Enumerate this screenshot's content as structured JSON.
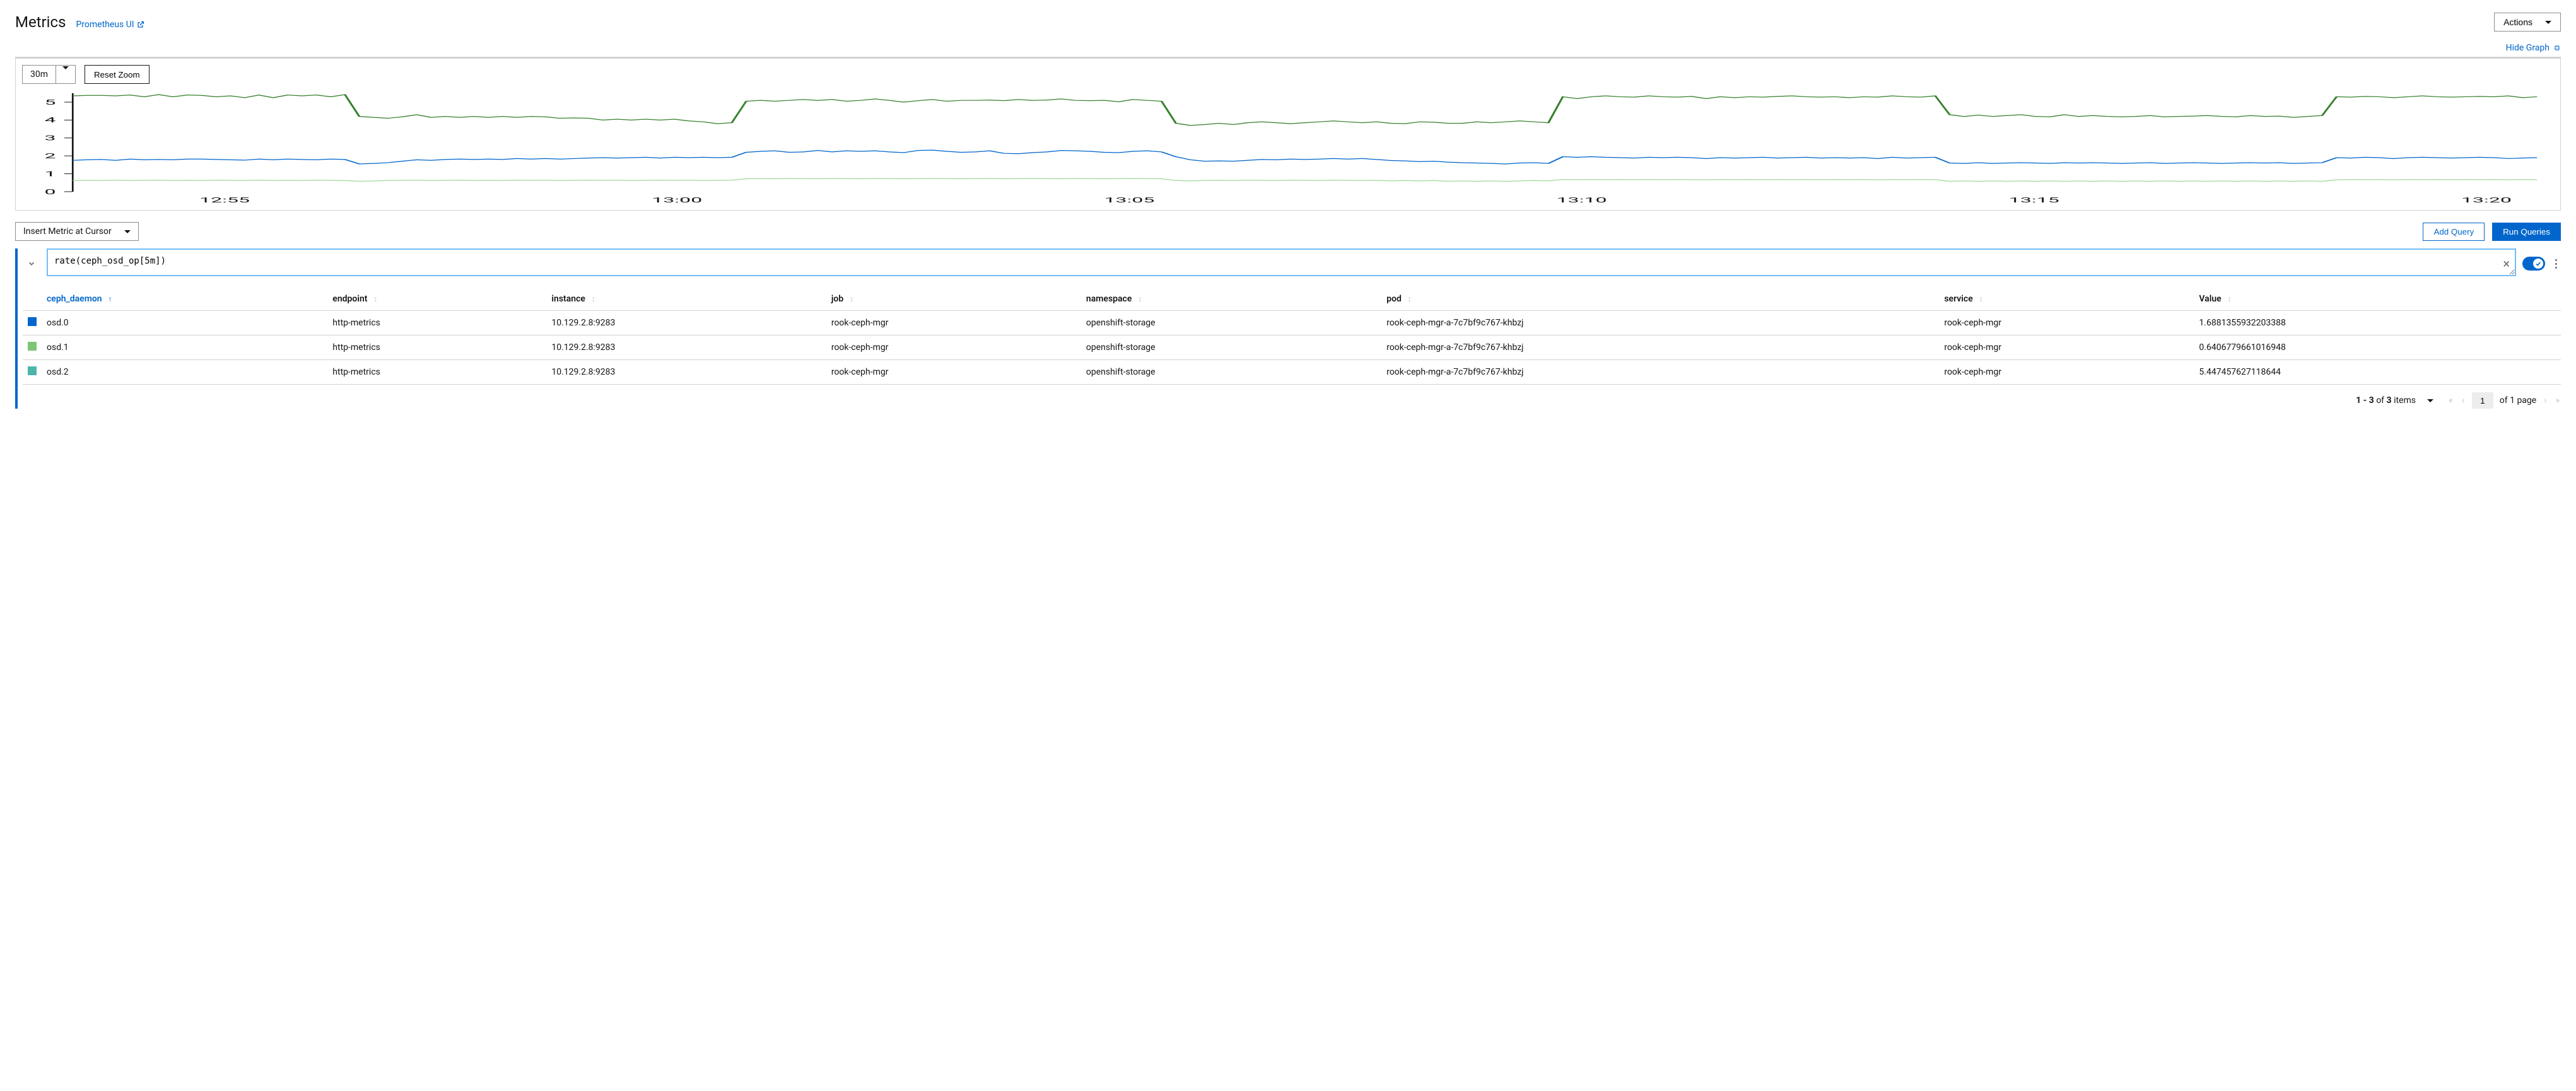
{
  "header": {
    "title": "Metrics",
    "prometheus_link": "Prometheus UI",
    "actions_label": "Actions"
  },
  "graph": {
    "hide_label": "Hide Graph",
    "time_range": "30m",
    "reset_zoom": "Reset Zoom",
    "chart": {
      "type": "line",
      "background_color": "#ffffff",
      "y_axis": {
        "min": 0,
        "max": 5.5,
        "ticks": [
          0,
          1,
          2,
          3,
          4,
          5
        ]
      },
      "x_axis": {
        "ticks": [
          "12:55",
          "13:00",
          "13:05",
          "13:10",
          "13:15",
          "13:20"
        ]
      },
      "series": [
        {
          "name": "osd.2",
          "color": "#38812f",
          "stroke_width": 1.3,
          "points": [
            5.35,
            5.38,
            5.38,
            5.35,
            5.4,
            5.3,
            5.42,
            5.3,
            5.4,
            5.38,
            5.3,
            5.35,
            5.25,
            5.4,
            5.25,
            5.4,
            5.35,
            5.4,
            5.3,
            5.42,
            4.2,
            4.15,
            4.1,
            4.18,
            4.3,
            4.15,
            4.2,
            4.15,
            4.2,
            4.15,
            4.2,
            4.15,
            4.2,
            4.18,
            4.1,
            4.12,
            4.1,
            4.0,
            4.05,
            4.0,
            4.05,
            4.0,
            4.05,
            3.95,
            3.9,
            3.8,
            3.85,
            5.05,
            5.1,
            5.05,
            5.1,
            5.15,
            5.1,
            5.15,
            5.05,
            5.1,
            5.18,
            5.1,
            5.0,
            5.08,
            5.15,
            5.05,
            5.1,
            5.1,
            5.12,
            5.08,
            5.15,
            5.1,
            5.12,
            5.18,
            5.1,
            5.08,
            5.1,
            5.02,
            5.15,
            5.1,
            5.05,
            3.82,
            3.7,
            3.75,
            3.82,
            3.75,
            3.85,
            3.9,
            3.85,
            3.8,
            3.85,
            3.9,
            3.95,
            3.9,
            3.85,
            3.9,
            3.82,
            3.8,
            3.9,
            3.88,
            3.82,
            3.82,
            3.9,
            3.85,
            3.9,
            3.95,
            3.9,
            3.85,
            5.3,
            5.2,
            5.3,
            5.35,
            5.3,
            5.28,
            5.35,
            5.3,
            5.28,
            5.32,
            5.2,
            5.3,
            5.25,
            5.3,
            5.28,
            5.32,
            5.35,
            5.3,
            5.28,
            5.3,
            5.25,
            5.3,
            5.28,
            5.35,
            5.3,
            5.28,
            5.35,
            4.3,
            4.2,
            4.28,
            4.2,
            4.25,
            4.3,
            4.2,
            4.18,
            4.3,
            4.2,
            4.25,
            4.2,
            4.18,
            4.2,
            4.25,
            4.18,
            4.2,
            4.22,
            4.25,
            4.2,
            4.18,
            4.25,
            4.2,
            4.22,
            4.15,
            4.2,
            4.25,
            5.3,
            5.28,
            5.32,
            5.3,
            5.25,
            5.3,
            5.35,
            5.3,
            5.28,
            5.3,
            5.32,
            5.3,
            5.35,
            5.25,
            5.3
          ]
        },
        {
          "name": "osd.0",
          "color": "#0066cc",
          "stroke_width": 1.3,
          "points": [
            1.75,
            1.78,
            1.8,
            1.75,
            1.82,
            1.78,
            1.8,
            1.78,
            1.82,
            1.82,
            1.8,
            1.78,
            1.76,
            1.82,
            1.78,
            1.82,
            1.8,
            1.78,
            1.82,
            1.8,
            1.55,
            1.58,
            1.62,
            1.7,
            1.78,
            1.75,
            1.8,
            1.82,
            1.8,
            1.82,
            1.8,
            1.85,
            1.82,
            1.85,
            1.82,
            1.85,
            1.88,
            1.9,
            1.88,
            1.9,
            1.92,
            1.88,
            1.92,
            1.9,
            1.92,
            1.9,
            1.92,
            2.2,
            2.25,
            2.28,
            2.2,
            2.22,
            2.3,
            2.22,
            2.28,
            2.25,
            2.28,
            2.22,
            2.18,
            2.3,
            2.32,
            2.25,
            2.2,
            2.22,
            2.28,
            2.14,
            2.12,
            2.18,
            2.22,
            2.3,
            2.28,
            2.25,
            2.2,
            2.18,
            2.25,
            2.28,
            2.22,
            1.95,
            1.78,
            1.7,
            1.72,
            1.7,
            1.75,
            1.8,
            1.78,
            1.82,
            1.8,
            1.82,
            1.85,
            1.82,
            1.85,
            1.8,
            1.74,
            1.72,
            1.68,
            1.7,
            1.65,
            1.62,
            1.6,
            1.58,
            1.55,
            1.6,
            1.62,
            1.58,
            1.95,
            1.92,
            1.95,
            1.92,
            1.9,
            1.88,
            1.92,
            1.9,
            1.92,
            1.9,
            1.85,
            1.9,
            1.88,
            1.9,
            1.92,
            1.88,
            1.9,
            1.92,
            1.88,
            1.9,
            1.88,
            1.9,
            1.85,
            1.92,
            1.88,
            1.9,
            1.92,
            1.6,
            1.58,
            1.62,
            1.58,
            1.6,
            1.62,
            1.6,
            1.58,
            1.62,
            1.6,
            1.62,
            1.6,
            1.58,
            1.6,
            1.62,
            1.58,
            1.6,
            1.62,
            1.6,
            1.58,
            1.6,
            1.62,
            1.6,
            1.62,
            1.58,
            1.6,
            1.62,
            1.9,
            1.88,
            1.92,
            1.9,
            1.85,
            1.9,
            1.92,
            1.9,
            1.88,
            1.9,
            1.92,
            1.9,
            1.85,
            1.88,
            1.9
          ]
        },
        {
          "name": "osd.1",
          "color": "#a2d99c",
          "stroke_width": 1.3,
          "points": [
            0.62,
            0.63,
            0.62,
            0.64,
            0.62,
            0.63,
            0.64,
            0.62,
            0.63,
            0.62,
            0.64,
            0.63,
            0.62,
            0.64,
            0.62,
            0.63,
            0.62,
            0.64,
            0.63,
            0.62,
            0.58,
            0.6,
            0.62,
            0.63,
            0.64,
            0.62,
            0.63,
            0.64,
            0.62,
            0.63,
            0.62,
            0.64,
            0.63,
            0.64,
            0.62,
            0.63,
            0.64,
            0.63,
            0.64,
            0.62,
            0.63,
            0.64,
            0.63,
            0.64,
            0.62,
            0.63,
            0.64,
            0.72,
            0.73,
            0.72,
            0.74,
            0.73,
            0.72,
            0.74,
            0.73,
            0.72,
            0.74,
            0.73,
            0.72,
            0.73,
            0.74,
            0.73,
            0.72,
            0.73,
            0.74,
            0.72,
            0.73,
            0.74,
            0.73,
            0.72,
            0.74,
            0.73,
            0.72,
            0.73,
            0.74,
            0.73,
            0.72,
            0.62,
            0.6,
            0.62,
            0.63,
            0.62,
            0.64,
            0.63,
            0.62,
            0.64,
            0.63,
            0.62,
            0.64,
            0.63,
            0.62,
            0.63,
            0.6,
            0.62,
            0.6,
            0.62,
            0.58,
            0.6,
            0.58,
            0.6,
            0.58,
            0.6,
            0.62,
            0.6,
            0.68,
            0.67,
            0.68,
            0.67,
            0.68,
            0.67,
            0.68,
            0.67,
            0.68,
            0.67,
            0.66,
            0.68,
            0.67,
            0.68,
            0.67,
            0.68,
            0.67,
            0.68,
            0.67,
            0.68,
            0.67,
            0.68,
            0.66,
            0.68,
            0.67,
            0.68,
            0.67,
            0.58,
            0.6,
            0.58,
            0.6,
            0.58,
            0.6,
            0.58,
            0.6,
            0.58,
            0.6,
            0.58,
            0.6,
            0.58,
            0.6,
            0.58,
            0.6,
            0.58,
            0.6,
            0.58,
            0.6,
            0.58,
            0.6,
            0.58,
            0.6,
            0.58,
            0.6,
            0.58,
            0.66,
            0.68,
            0.67,
            0.68,
            0.66,
            0.68,
            0.67,
            0.68,
            0.67,
            0.68,
            0.67,
            0.68,
            0.66,
            0.68,
            0.67
          ]
        }
      ]
    }
  },
  "query_controls": {
    "insert_metric": "Insert Metric at Cursor",
    "add_query": "Add Query",
    "run_queries": "Run Queries"
  },
  "query": "rate(ceph_osd_op[5m])",
  "table": {
    "columns": [
      {
        "key": "ceph_daemon",
        "label": "ceph_daemon",
        "sorted": true
      },
      {
        "key": "endpoint",
        "label": "endpoint"
      },
      {
        "key": "instance",
        "label": "instance"
      },
      {
        "key": "job",
        "label": "job"
      },
      {
        "key": "namespace",
        "label": "namespace"
      },
      {
        "key": "pod",
        "label": "pod"
      },
      {
        "key": "service",
        "label": "service"
      },
      {
        "key": "value",
        "label": "Value"
      }
    ],
    "row_colors": [
      "#0066cc",
      "#7cc674",
      "#4cb6ac"
    ],
    "rows": [
      [
        "osd.0",
        "http-metrics",
        "10.129.2.8:9283",
        "rook-ceph-mgr",
        "openshift-storage",
        "rook-ceph-mgr-a-7c7bf9c767-khbzj",
        "rook-ceph-mgr",
        "1.6881355932203388"
      ],
      [
        "osd.1",
        "http-metrics",
        "10.129.2.8:9283",
        "rook-ceph-mgr",
        "openshift-storage",
        "rook-ceph-mgr-a-7c7bf9c767-khbzj",
        "rook-ceph-mgr",
        "0.6406779661016948"
      ],
      [
        "osd.2",
        "http-metrics",
        "10.129.2.8:9283",
        "rook-ceph-mgr",
        "openshift-storage",
        "rook-ceph-mgr-a-7c7bf9c767-khbzj",
        "rook-ceph-mgr",
        "5.447457627118644"
      ]
    ]
  },
  "pagination": {
    "range": "1 - 3",
    "of_sep": "of",
    "total_items": "3",
    "items_label": "items",
    "page": "1",
    "of_page": "of 1 page"
  }
}
